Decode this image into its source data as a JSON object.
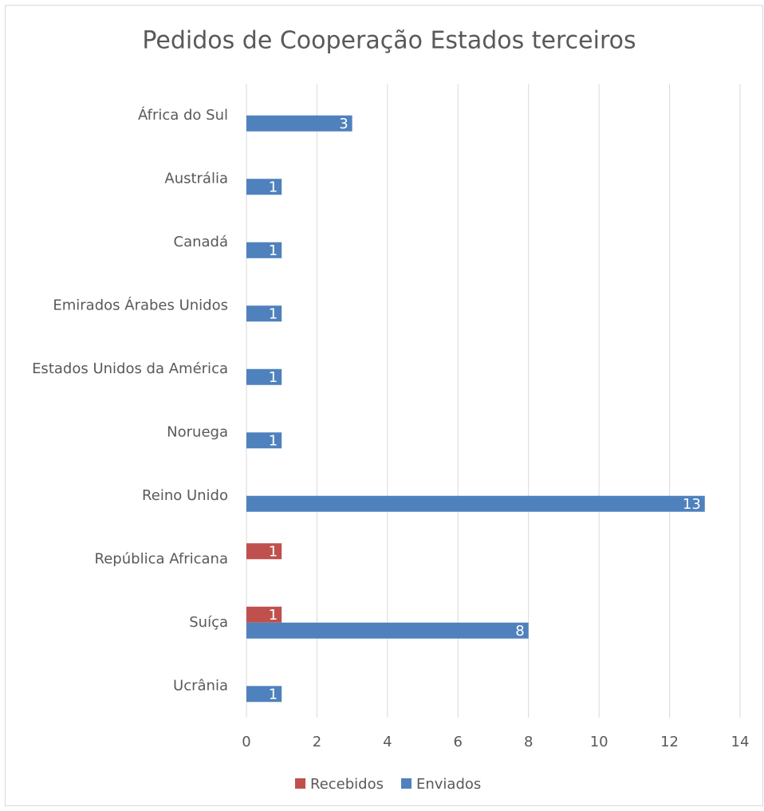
{
  "chart_data": {
    "type": "hbar",
    "title": "Pedidos de Cooperação Estados terceiros",
    "categories": [
      "África do Sul",
      "Austrália",
      "Canadá",
      "Emirados Árabes Unidos",
      "Estados Unidos da América",
      "Noruega",
      "Reino Unido",
      "República Africana",
      "Suíça",
      "Ucrânia"
    ],
    "series": [
      {
        "name": "Recebidos",
        "color": "#c0504d",
        "values": [
          null,
          null,
          null,
          null,
          null,
          null,
          null,
          1,
          1,
          null
        ]
      },
      {
        "name": "Enviados",
        "color": "#4f81bd",
        "values": [
          3,
          1,
          1,
          1,
          1,
          1,
          13,
          null,
          8,
          1
        ]
      }
    ],
    "xlim": [
      0,
      14
    ],
    "xticks": [
      0,
      2,
      4,
      6,
      8,
      10,
      12,
      14
    ],
    "grid": true,
    "legend": "bottom"
  }
}
